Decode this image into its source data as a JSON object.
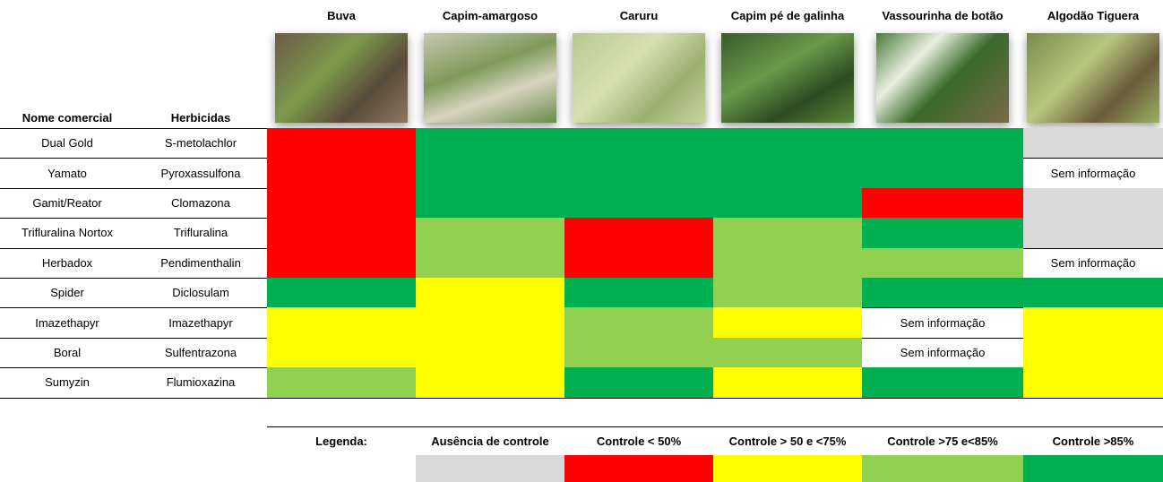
{
  "header": {
    "col_name": "Nome comercial",
    "col_herbicide": "Herbicidas",
    "weeds": [
      "Buva",
      "Capim-amargoso",
      "Caruru",
      "Capim pé de galinha",
      "Vassourinha de botão",
      "Algodão Tiguera"
    ]
  },
  "table": {
    "rows": [
      {
        "name": "Dual Gold",
        "herbicide": "S-metolachlor",
        "cells": [
          {
            "color": "#ff0000"
          },
          {
            "color": "#00b050"
          },
          {
            "color": "#00b050"
          },
          {
            "color": "#00b050"
          },
          {
            "color": "#00b050"
          },
          {
            "color": "#d9d9d9"
          }
        ]
      },
      {
        "name": "Yamato",
        "herbicide": "Pyroxassulfona",
        "cells": [
          {
            "color": "#ff0000"
          },
          {
            "color": "#00b050"
          },
          {
            "color": "#00b050"
          },
          {
            "color": "#00b050"
          },
          {
            "color": "#00b050"
          },
          {
            "text": "Sem informação"
          }
        ]
      },
      {
        "name": "Gamit/Reator",
        "herbicide": "Clomazona",
        "cells": [
          {
            "color": "#ff0000"
          },
          {
            "color": "#00b050"
          },
          {
            "color": "#00b050"
          },
          {
            "color": "#00b050"
          },
          {
            "color": "#ff0000"
          },
          {
            "color": "#d9d9d9"
          }
        ]
      },
      {
        "name": "Trifluralina Nortox",
        "herbicide": "Trifluralina",
        "cells": [
          {
            "color": "#ff0000"
          },
          {
            "color": "#92d050"
          },
          {
            "color": "#ff0000"
          },
          {
            "color": "#92d050"
          },
          {
            "color": "#00b050"
          },
          {
            "color": "#d9d9d9"
          }
        ]
      },
      {
        "name": "Herbadox",
        "herbicide": "Pendimenthalin",
        "cells": [
          {
            "color": "#ff0000"
          },
          {
            "color": "#92d050"
          },
          {
            "color": "#ff0000"
          },
          {
            "color": "#92d050"
          },
          {
            "color": "#92d050"
          },
          {
            "text": "Sem informação"
          }
        ]
      },
      {
        "name": "Spider",
        "herbicide": "Diclosulam",
        "cells": [
          {
            "color": "#00b050"
          },
          {
            "color": "#ffff00"
          },
          {
            "color": "#00b050"
          },
          {
            "color": "#92d050"
          },
          {
            "color": "#00b050"
          },
          {
            "color": "#00b050"
          }
        ]
      },
      {
        "name": "Imazethapyr",
        "herbicide": "Imazethapyr",
        "cells": [
          {
            "color": "#ffff00"
          },
          {
            "color": "#ffff00"
          },
          {
            "color": "#92d050"
          },
          {
            "color": "#ffff00"
          },
          {
            "text": "Sem informação"
          },
          {
            "color": "#ffff00"
          }
        ]
      },
      {
        "name": "Boral",
        "herbicide": "Sulfentrazona",
        "cells": [
          {
            "color": "#ffff00"
          },
          {
            "color": "#ffff00"
          },
          {
            "color": "#92d050"
          },
          {
            "color": "#92d050"
          },
          {
            "text": "Sem informação"
          },
          {
            "color": "#ffff00"
          }
        ]
      },
      {
        "name": "Sumyzin",
        "herbicide": "Flumioxazina",
        "cells": [
          {
            "color": "#92d050"
          },
          {
            "color": "#ffff00"
          },
          {
            "color": "#00b050"
          },
          {
            "color": "#ffff00"
          },
          {
            "color": "#00b050"
          },
          {
            "color": "#ffff00"
          }
        ]
      }
    ]
  },
  "legend": {
    "title": "Legenda:",
    "items": [
      {
        "label": "Ausência de controle",
        "color": "#d9d9d9"
      },
      {
        "label": "Controle < 50%",
        "color": "#ff0000"
      },
      {
        "label": "Controle > 50 e <75%",
        "color": "#ffff00"
      },
      {
        "label": "Controle >75 e<85%",
        "color": "#92d050"
      },
      {
        "label": "Controle >85%",
        "color": "#00b050"
      }
    ]
  }
}
